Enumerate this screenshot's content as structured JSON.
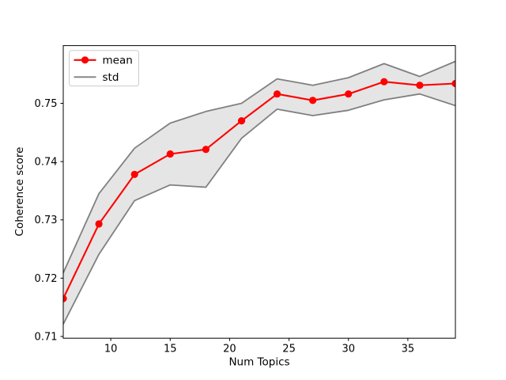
{
  "figure": {
    "background": "#ffffff",
    "frame_color": "#000000"
  },
  "chart_data": {
    "type": "line",
    "title": "",
    "xlabel": "Num Topics",
    "ylabel": "Coherence score",
    "x": [
      6,
      9,
      12,
      15,
      18,
      21,
      24,
      27,
      30,
      33,
      36,
      39
    ],
    "series": [
      {
        "name": "mean",
        "style": "line-with-circle-markers",
        "color": "#ff0000",
        "values": [
          0.7165,
          0.7293,
          0.7378,
          0.7413,
          0.7421,
          0.747,
          0.7516,
          0.7505,
          0.7516,
          0.7537,
          0.7531,
          0.7534
        ]
      },
      {
        "name": "std",
        "style": "band-around-mean",
        "edge_color": "#808080",
        "fill_color": "#e5e5e5",
        "values": [
          0.0044,
          0.0052,
          0.0045,
          0.0053,
          0.0065,
          0.003,
          0.0026,
          0.0026,
          0.0028,
          0.0031,
          0.0015,
          0.0038
        ]
      }
    ],
    "xlim": [
      6,
      39
    ],
    "ylim": [
      0.7097,
      0.7599
    ],
    "xticks": [
      10,
      15,
      20,
      25,
      30,
      35
    ],
    "yticks": [
      "0.71",
      "0.72",
      "0.73",
      "0.74",
      "0.75"
    ],
    "grid": false,
    "legend": {
      "position": "upper-left",
      "entries": [
        "mean",
        "std"
      ]
    }
  }
}
